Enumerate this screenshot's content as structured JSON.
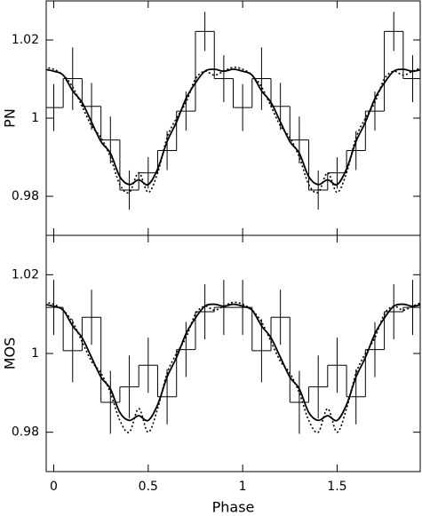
{
  "chart_data": [
    {
      "type": "line",
      "ylabel": "PN",
      "color": "#000000",
      "xlim": [
        -0.04,
        1.94
      ],
      "ylim": [
        0.97,
        1.03
      ],
      "xticks": [
        0,
        0.5,
        1,
        1.5
      ],
      "yticks": [
        0.98,
        1,
        1.02
      ],
      "series": [
        {
          "style": "step",
          "x": [
            0,
            0.1,
            0.2,
            0.3,
            0.4,
            0.5,
            0.6,
            0.7,
            0.8,
            0.9,
            1,
            1.1,
            1.2,
            1.3,
            1.4,
            1.5,
            1.6,
            1.7,
            1.8,
            1.9
          ],
          "values": [
            1.0027,
            1.0101,
            1.003,
            0.9944,
            0.9816,
            0.986,
            0.9917,
            1.0018,
            1.0222,
            1.0101,
            1.0027,
            1.0101,
            1.003,
            0.9944,
            0.9816,
            0.986,
            0.9917,
            1.0018,
            1.0222,
            1.0101
          ],
          "errors": [
            0.006,
            0.008,
            0.006,
            0.006,
            0.005,
            0.004,
            0.005,
            0.005,
            0.005,
            0.006,
            0.006,
            0.008,
            0.006,
            0.006,
            0.005,
            0.004,
            0.005,
            0.005,
            0.005,
            0.006
          ]
        },
        {
          "style": "solid",
          "x": [
            -0.05,
            0,
            0.05,
            0.1,
            0.15,
            0.2,
            0.25,
            0.3,
            0.35,
            0.4,
            0.45,
            0.5,
            0.55,
            0.6,
            0.65,
            0.7,
            0.75,
            0.8,
            0.85,
            0.9,
            0.95,
            1,
            1.05,
            1.1,
            1.15,
            1.2,
            1.25,
            1.3,
            1.35,
            1.4,
            1.45,
            1.5,
            1.55,
            1.6,
            1.65,
            1.7,
            1.75,
            1.8,
            1.85,
            1.9,
            1.95
          ],
          "values": [
            1.0125,
            1.012,
            1.011,
            1.007,
            1.004,
            0.999,
            0.994,
            0.991,
            0.985,
            0.983,
            0.9842,
            0.983,
            0.987,
            0.994,
            0.999,
            1.005,
            1.009,
            1.012,
            1.0125,
            1.012,
            1.0125,
            1.012,
            1.011,
            1.007,
            1.004,
            0.999,
            0.994,
            0.991,
            0.985,
            0.983,
            0.9842,
            0.983,
            0.987,
            0.994,
            0.999,
            1.005,
            1.009,
            1.012,
            1.0125,
            1.012,
            1.0125
          ]
        },
        {
          "style": "dotted",
          "x": [
            -0.05,
            0,
            0.05,
            0.1,
            0.15,
            0.2,
            0.25,
            0.3,
            0.35,
            0.4,
            0.45,
            0.5,
            0.55,
            0.6,
            0.65,
            0.7,
            0.75,
            0.8,
            0.85,
            0.9,
            0.95,
            1,
            1.05,
            1.1,
            1.15,
            1.2,
            1.25,
            1.3,
            1.35,
            1.4,
            1.45,
            1.5,
            1.55,
            1.6,
            1.65,
            1.7,
            1.75,
            1.8,
            1.85,
            1.9,
            1.95
          ],
          "values": [
            1.013,
            1.0125,
            1.011,
            1.008,
            1.003,
            0.998,
            0.995,
            0.99,
            0.983,
            0.981,
            0.986,
            0.981,
            0.986,
            0.995,
            1.0,
            1.004,
            1.01,
            1.012,
            1.011,
            1.012,
            1.013,
            1.0125,
            1.011,
            1.008,
            1.003,
            0.998,
            0.995,
            0.99,
            0.983,
            0.981,
            0.986,
            0.981,
            0.986,
            0.995,
            1.0,
            1.004,
            1.01,
            1.012,
            1.011,
            1.012,
            1.013
          ]
        }
      ]
    },
    {
      "type": "line",
      "ylabel": "MOS",
      "xlabel": "Phase",
      "color": "#000000",
      "xlim": [
        -0.04,
        1.94
      ],
      "ylim": [
        0.97,
        1.03
      ],
      "xticks": [
        0,
        0.5,
        1,
        1.5
      ],
      "yticks": [
        0.98,
        1,
        1.02
      ],
      "series": [
        {
          "style": "step",
          "x": [
            0,
            0.1,
            0.2,
            0.3,
            0.4,
            0.5,
            0.6,
            0.7,
            0.8,
            0.9,
            1,
            1.1,
            1.2,
            1.3,
            1.4,
            1.5,
            1.6,
            1.7,
            1.8,
            1.9
          ],
          "values": [
            1.0117,
            1.0007,
            1.0092,
            0.9876,
            0.9915,
            0.997,
            0.989,
            1.001,
            1.0106,
            1.0117,
            1.0117,
            1.0007,
            1.0092,
            0.9876,
            0.9915,
            0.997,
            0.989,
            1.001,
            1.0106,
            1.0117
          ],
          "errors": [
            0.007,
            0.008,
            0.007,
            0.008,
            0.008,
            0.007,
            0.007,
            0.007,
            0.007,
            0.007,
            0.007,
            0.008,
            0.007,
            0.008,
            0.008,
            0.007,
            0.007,
            0.007,
            0.007,
            0.007
          ]
        },
        {
          "style": "solid",
          "x": [
            -0.05,
            0,
            0.05,
            0.1,
            0.15,
            0.2,
            0.25,
            0.3,
            0.35,
            0.4,
            0.45,
            0.5,
            0.55,
            0.6,
            0.65,
            0.7,
            0.75,
            0.8,
            0.85,
            0.9,
            0.95,
            1,
            1.05,
            1.1,
            1.15,
            1.2,
            1.25,
            1.3,
            1.35,
            1.4,
            1.45,
            1.5,
            1.55,
            1.6,
            1.65,
            1.7,
            1.75,
            1.8,
            1.85,
            1.9,
            1.95
          ],
          "values": [
            1.0125,
            1.012,
            1.011,
            1.007,
            1.004,
            0.999,
            0.994,
            0.991,
            0.985,
            0.983,
            0.9842,
            0.983,
            0.987,
            0.994,
            0.999,
            1.005,
            1.009,
            1.012,
            1.0125,
            1.012,
            1.0125,
            1.012,
            1.011,
            1.007,
            1.004,
            0.999,
            0.994,
            0.991,
            0.985,
            0.983,
            0.9842,
            0.983,
            0.987,
            0.994,
            0.999,
            1.005,
            1.009,
            1.012,
            1.0125,
            1.012,
            1.0125
          ]
        },
        {
          "style": "dotted",
          "x": [
            -0.05,
            0,
            0.05,
            0.1,
            0.15,
            0.2,
            0.25,
            0.3,
            0.35,
            0.4,
            0.45,
            0.5,
            0.55,
            0.6,
            0.65,
            0.7,
            0.75,
            0.8,
            0.85,
            0.9,
            0.95,
            1,
            1.05,
            1.1,
            1.15,
            1.2,
            1.25,
            1.3,
            1.35,
            1.4,
            1.45,
            1.5,
            1.55,
            1.6,
            1.65,
            1.7,
            1.75,
            1.8,
            1.85,
            1.9,
            1.95
          ],
          "values": [
            1.013,
            1.0125,
            1.011,
            1.008,
            1.003,
            0.998,
            0.995,
            0.99,
            0.983,
            0.98,
            0.986,
            0.98,
            0.986,
            0.995,
            1.0,
            1.004,
            1.01,
            1.012,
            1.011,
            1.012,
            1.013,
            1.0125,
            1.011,
            1.008,
            1.003,
            0.998,
            0.995,
            0.99,
            0.983,
            0.98,
            0.986,
            0.98,
            0.986,
            0.995,
            1.0,
            1.004,
            1.01,
            1.012,
            1.011,
            1.012,
            1.013
          ]
        }
      ]
    }
  ]
}
